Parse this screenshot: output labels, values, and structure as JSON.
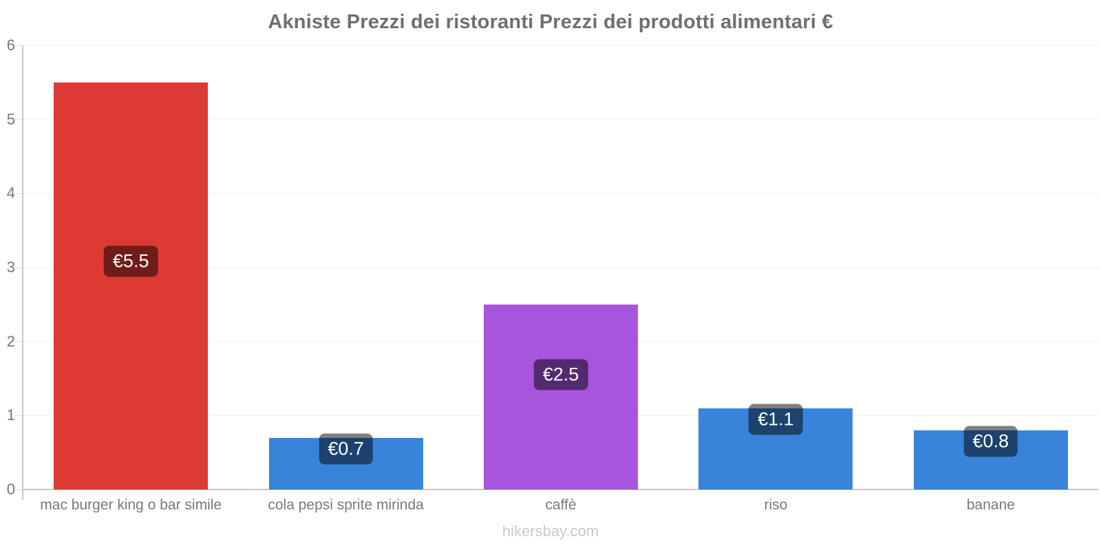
{
  "title": "Akniste Prezzi dei ristoranti Prezzi dei prodotti alimentari €",
  "footer": "hikersbay.com",
  "colors": {
    "axis": "#c6c6c6",
    "grid": "#f2f2f2",
    "tick": "#dedede",
    "title_text": "#6f6f6f",
    "axis_text": "#757575",
    "category_text": "#78787c",
    "footer_text": "#c7cad1",
    "badge_bg": "rgba(0,0,0,0.5)",
    "badge_text": "#ffffff"
  },
  "chart_data": {
    "type": "bar",
    "title": "Akniste Prezzi dei ristoranti Prezzi dei prodotti alimentari €",
    "categories": [
      "mac burger king o bar simile",
      "cola pepsi sprite mirinda",
      "caffè",
      "riso",
      "banane"
    ],
    "values": [
      5.5,
      0.7,
      2.5,
      1.1,
      0.8
    ],
    "value_labels": [
      "€5.5",
      "€0.7",
      "€2.5",
      "€1.1",
      "€0.8"
    ],
    "bar_colors": [
      "#dc3a33",
      "#3884db",
      "#a855de",
      "#3884db",
      "#3884db"
    ],
    "currency": "€",
    "xlabel": "",
    "ylabel": "",
    "ylim": [
      0,
      6
    ],
    "yticks": [
      0,
      1,
      2,
      3,
      4,
      5,
      6
    ],
    "grid": true,
    "legend": false
  }
}
